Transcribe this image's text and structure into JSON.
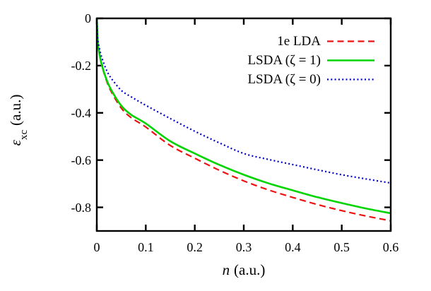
{
  "figure": {
    "background_color": "#ffffff",
    "frame_color": "#000000"
  },
  "chart_data": {
    "type": "line",
    "title": "",
    "xlabel": {
      "symbol": "n",
      "units": "(a.u.)"
    },
    "ylabel": {
      "symbol": "ε",
      "subscript": "xc",
      "units": "(a.u.)"
    },
    "xlim": [
      0,
      0.6
    ],
    "ylim": [
      -0.9,
      0
    ],
    "grid": false,
    "legend_position": "top-right-inside",
    "xticks": {
      "values": [
        0,
        0.1,
        0.2,
        0.3,
        0.4,
        0.5,
        0.6
      ],
      "labels": [
        "0",
        "0.1",
        "0.2",
        "0.3",
        "0.4",
        "0.5",
        "0.6"
      ]
    },
    "yticks": {
      "values": [
        0,
        -0.2,
        -0.4,
        -0.6,
        -0.8
      ],
      "labels": [
        "0",
        "-0.2",
        "-0.4",
        "-0.6",
        "-0.8"
      ]
    },
    "x": [
      0,
      0.002,
      0.005,
      0.01,
      0.02,
      0.03,
      0.05,
      0.07,
      0.1,
      0.15,
      0.2,
      0.25,
      0.3,
      0.35,
      0.4,
      0.45,
      0.5,
      0.55,
      0.6
    ],
    "series": [
      {
        "name": "1e LDA",
        "color": "#ee1111",
        "line_style": "dashed",
        "line_width": 2.2,
        "values": [
          0,
          -0.1,
          -0.145,
          -0.197,
          -0.265,
          -0.312,
          -0.38,
          -0.42,
          -0.46,
          -0.538,
          -0.592,
          -0.643,
          -0.688,
          -0.726,
          -0.758,
          -0.788,
          -0.814,
          -0.837,
          -0.857
        ]
      },
      {
        "name": "LSDA (ζ = 1)",
        "color": "#00d500",
        "line_style": "solid",
        "line_width": 2.6,
        "values": [
          0,
          -0.1,
          -0.145,
          -0.195,
          -0.26,
          -0.305,
          -0.37,
          -0.408,
          -0.445,
          -0.52,
          -0.572,
          -0.62,
          -0.662,
          -0.698,
          -0.728,
          -0.757,
          -0.782,
          -0.805,
          -0.825
        ]
      },
      {
        "name": "LSDA (ζ = 0)",
        "color": "#0000cd",
        "line_style": "dotted",
        "line_width": 2.2,
        "values": [
          0,
          -0.085,
          -0.125,
          -0.165,
          -0.22,
          -0.255,
          -0.305,
          -0.332,
          -0.368,
          -0.424,
          -0.478,
          -0.527,
          -0.572,
          -0.597,
          -0.619,
          -0.641,
          -0.662,
          -0.68,
          -0.697
        ]
      }
    ]
  }
}
